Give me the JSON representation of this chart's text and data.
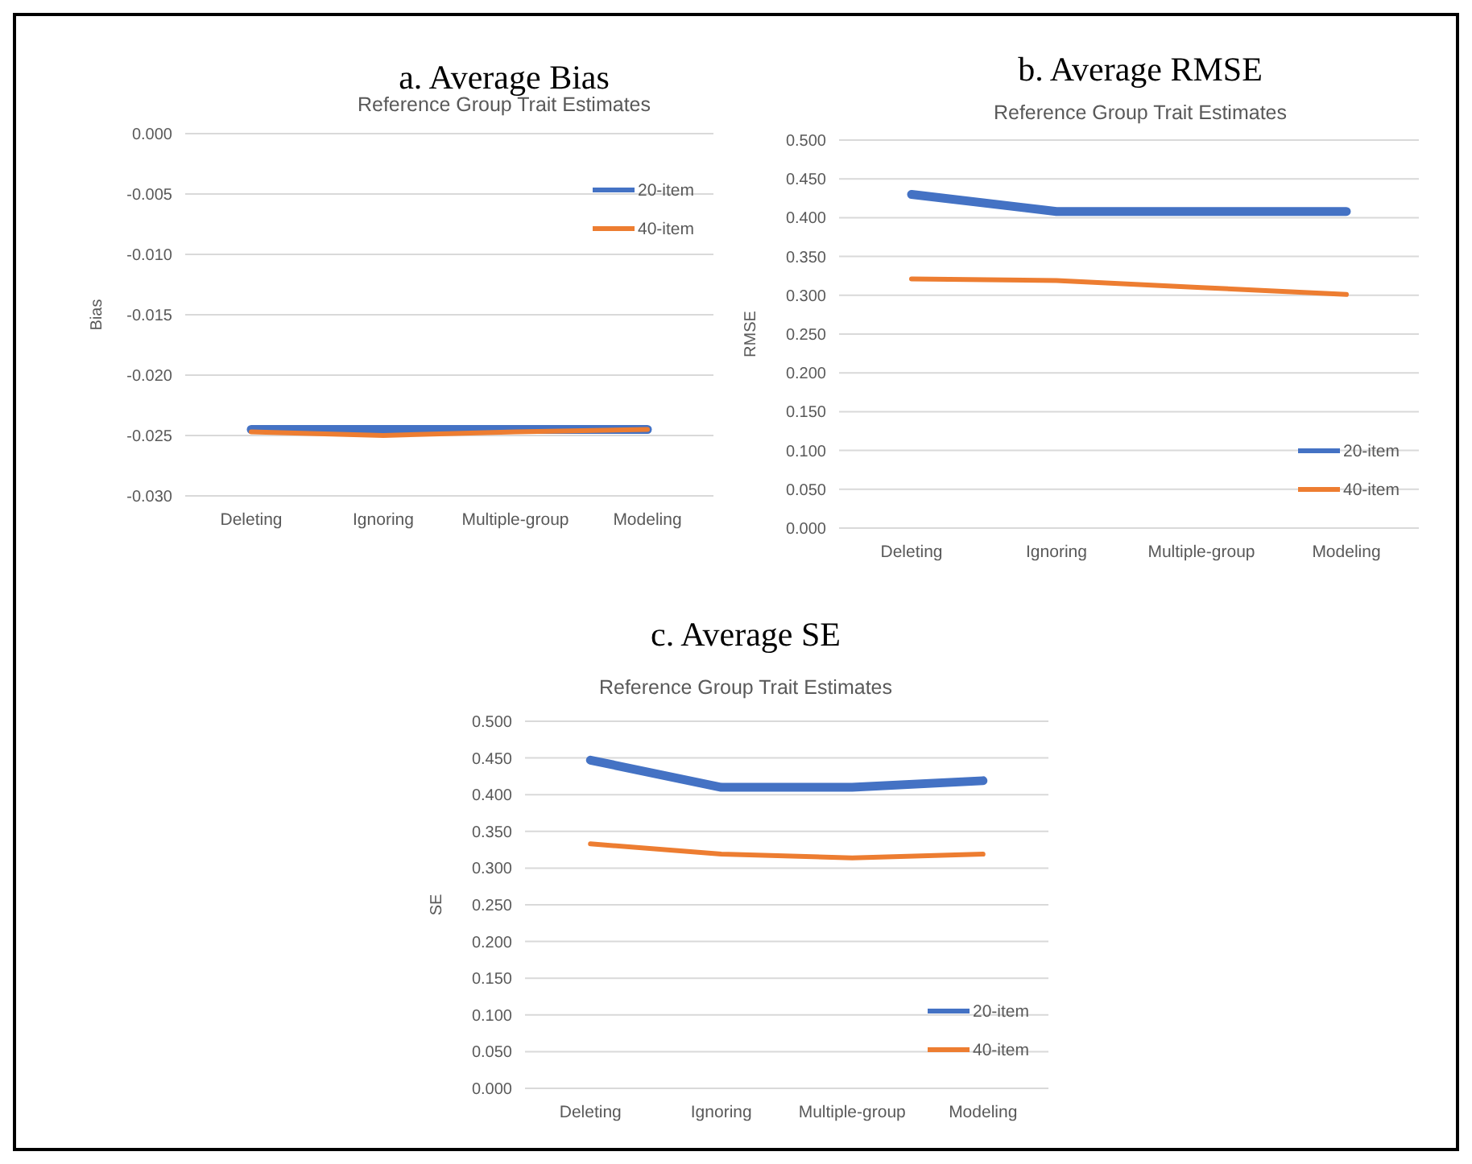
{
  "chart_data": [
    {
      "type": "line",
      "title": "a. Average Bias",
      "subtitle": "Reference Group Trait Estimates",
      "ylabel": "Bias",
      "categories": [
        "Deleting",
        "Ignoring",
        "Multiple-group",
        "Modeling"
      ],
      "series": [
        {
          "name": "20-item",
          "color": "#4472c4",
          "values": [
            -0.0245,
            -0.0245,
            -0.0245,
            -0.0245
          ]
        },
        {
          "name": "40-item",
          "color": "#ed7d31",
          "values": [
            -0.0247,
            -0.025,
            -0.0247,
            -0.0245
          ]
        }
      ],
      "ylim": [
        -0.03,
        0
      ],
      "yticks": [
        {
          "value": 0,
          "label": "0.000"
        },
        {
          "value": -0.005,
          "label": "-0.005"
        },
        {
          "value": -0.01,
          "label": "-0.010"
        },
        {
          "value": -0.015,
          "label": "-0.015"
        },
        {
          "value": -0.02,
          "label": "-0.020"
        },
        {
          "value": -0.025,
          "label": "-0.025"
        },
        {
          "value": -0.03,
          "label": "-0.030"
        }
      ],
      "grid": "y",
      "legend": "top right",
      "marker": "none",
      "line_style": "solid"
    },
    {
      "type": "line",
      "title": "b. Average RMSE",
      "subtitle": "Reference Group Trait Estimates",
      "ylabel": "RMSE",
      "categories": [
        "Deleting",
        "Ignoring",
        "Multiple-group",
        "Modeling"
      ],
      "series": [
        {
          "name": "20-item",
          "color": "#4472c4",
          "values": [
            0.43,
            0.408,
            0.408,
            0.408
          ]
        },
        {
          "name": "40-item",
          "color": "#ed7d31",
          "values": [
            0.321,
            0.319,
            0.31,
            0.301
          ]
        }
      ],
      "ylim": [
        0,
        0.5
      ],
      "yticks": [
        {
          "value": 0,
          "label": "0.000"
        },
        {
          "value": 0.05,
          "label": "0.050"
        },
        {
          "value": 0.1,
          "label": "0.100"
        },
        {
          "value": 0.15,
          "label": "0.150"
        },
        {
          "value": 0.2,
          "label": "0.200"
        },
        {
          "value": 0.25,
          "label": "0.250"
        },
        {
          "value": 0.3,
          "label": "0.300"
        },
        {
          "value": 0.35,
          "label": "0.350"
        },
        {
          "value": 0.4,
          "label": "0.400"
        },
        {
          "value": 0.45,
          "label": "0.450"
        },
        {
          "value": 0.5,
          "label": "0.500"
        }
      ],
      "grid": "y",
      "legend": "bottom right",
      "marker": "none",
      "line_style": "solid"
    },
    {
      "type": "line",
      "title": "c. Average SE",
      "subtitle": "Reference Group Trait Estimates",
      "ylabel": "SE",
      "categories": [
        "Deleting",
        "Ignoring",
        "Multiple-group",
        "Modeling"
      ],
      "series": [
        {
          "name": "20-item",
          "color": "#4472c4",
          "values": [
            0.447,
            0.41,
            0.41,
            0.419
          ]
        },
        {
          "name": "40-item",
          "color": "#ed7d31",
          "values": [
            0.333,
            0.319,
            0.314,
            0.319
          ]
        }
      ],
      "ylim": [
        0,
        0.5
      ],
      "yticks": [
        {
          "value": 0,
          "label": "0.000"
        },
        {
          "value": 0.05,
          "label": "0.050"
        },
        {
          "value": 0.1,
          "label": "0.100"
        },
        {
          "value": 0.15,
          "label": "0.150"
        },
        {
          "value": 0.2,
          "label": "0.200"
        },
        {
          "value": 0.25,
          "label": "0.250"
        },
        {
          "value": 0.3,
          "label": "0.300"
        },
        {
          "value": 0.35,
          "label": "0.350"
        },
        {
          "value": 0.4,
          "label": "0.400"
        },
        {
          "value": 0.45,
          "label": "0.450"
        },
        {
          "value": 0.5,
          "label": "0.500"
        }
      ],
      "grid": "y",
      "legend": "bottom right",
      "marker": "none",
      "line_style": "solid"
    }
  ]
}
